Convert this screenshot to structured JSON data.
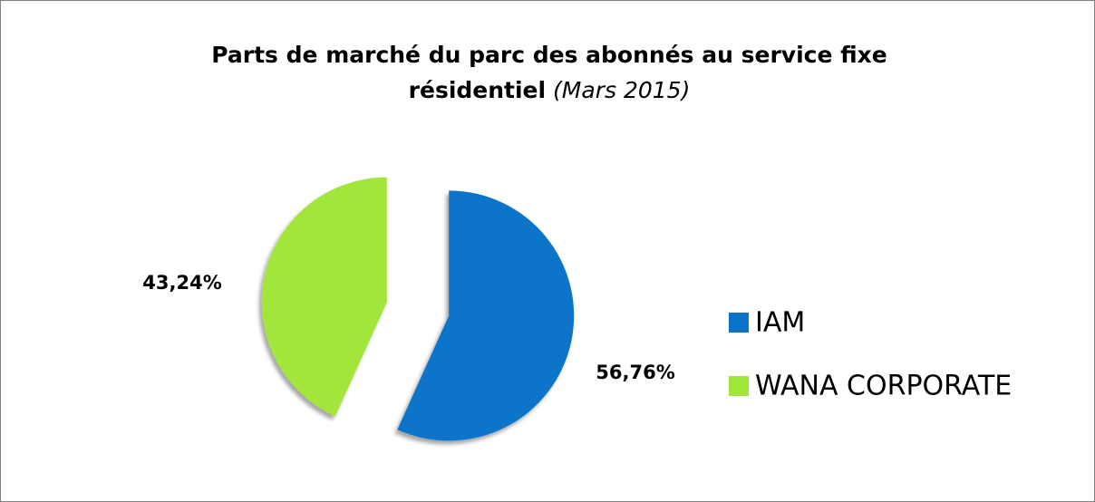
{
  "chart_data": {
    "type": "pie",
    "title": "Parts de marché du parc des abonnés au service fixe résidentiel",
    "subtitle": "(Mars 2015)",
    "categories": [
      "IAM",
      "WANA CORPORATE"
    ],
    "values": [
      56.76,
      43.24
    ],
    "value_labels": [
      "56,76%",
      "43,24%"
    ],
    "colors": [
      "#0b74c9",
      "#a2e63b"
    ],
    "legend": "right"
  }
}
